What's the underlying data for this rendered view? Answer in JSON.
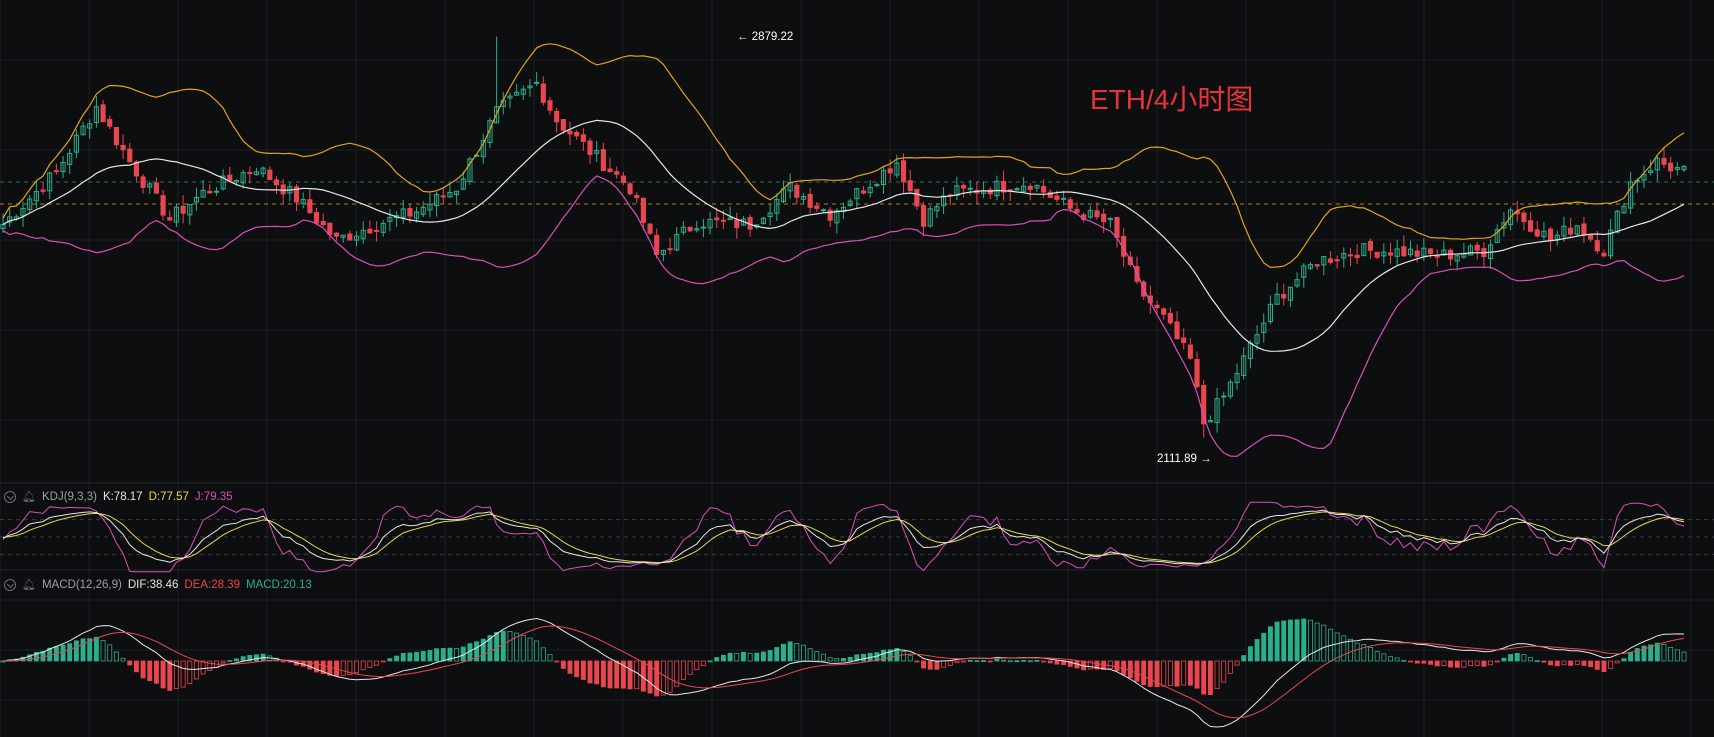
{
  "title": "ETH/4小时图",
  "colors": {
    "bg": "#0d0e10",
    "grid": "#1c1e22",
    "up": "#2bae8c",
    "down": "#e8474f",
    "boll_upper": "#e3a21a",
    "boll_mid": "#e6e6e6",
    "boll_lower": "#d94fb8",
    "k": "#e6e6e6",
    "d": "#e8d84a",
    "j": "#d94fb8",
    "dif": "#e6e6e6",
    "dea": "#e8474f",
    "ref_line": "#c9a227"
  },
  "annotations": {
    "high": {
      "text": "2879.22",
      "arrow": "←"
    },
    "low": {
      "text": "2111.89",
      "arrow": "→"
    }
  },
  "kdj": {
    "label": "KDJ(9,3,3)",
    "k": "K:78.17",
    "d": "D:77.57",
    "j": "J:79.35"
  },
  "macd": {
    "label": "MACD(12,26,9)",
    "dif": "DIF:38.46",
    "dea": "DEA:28.39",
    "macd": "MACD:20.13"
  },
  "chart_data": {
    "type": "candlestick",
    "title": "ETH/4小时图",
    "ylim": [
      2050,
      2930
    ],
    "high_marker": 2879.22,
    "low_marker": 2111.89,
    "close_path": [
      [
        0,
        2520
      ],
      [
        8,
        2620
      ],
      [
        14,
        2745
      ],
      [
        19,
        2640
      ],
      [
        25,
        2530
      ],
      [
        30,
        2580
      ],
      [
        38,
        2630
      ],
      [
        44,
        2570
      ],
      [
        50,
        2490
      ],
      [
        56,
        2520
      ],
      [
        62,
        2545
      ],
      [
        68,
        2590
      ],
      [
        74,
        2735
      ],
      [
        80,
        2790
      ],
      [
        83,
        2720
      ],
      [
        88,
        2660
      ],
      [
        94,
        2590
      ],
      [
        98,
        2460
      ],
      [
        104,
        2525
      ],
      [
        112,
        2520
      ],
      [
        118,
        2590
      ],
      [
        124,
        2540
      ],
      [
        130,
        2600
      ],
      [
        134,
        2640
      ],
      [
        138,
        2530
      ],
      [
        142,
        2580
      ],
      [
        148,
        2590
      ],
      [
        154,
        2600
      ],
      [
        160,
        2550
      ],
      [
        166,
        2520
      ],
      [
        170,
        2400
      ],
      [
        174,
        2340
      ],
      [
        178,
        2260
      ],
      [
        180,
        2140
      ],
      [
        183,
        2190
      ],
      [
        187,
        2285
      ],
      [
        191,
        2380
      ],
      [
        197,
        2450
      ],
      [
        203,
        2470
      ],
      [
        208,
        2470
      ],
      [
        215,
        2460
      ],
      [
        222,
        2470
      ],
      [
        226,
        2550
      ],
      [
        232,
        2490
      ],
      [
        236,
        2520
      ],
      [
        240,
        2470
      ],
      [
        244,
        2600
      ],
      [
        248,
        2640
      ],
      [
        252,
        2620
      ]
    ],
    "kdj_series": [
      {
        "name": "K",
        "value": 78.17
      },
      {
        "name": "D",
        "value": 77.57
      },
      {
        "name": "J",
        "value": 79.35
      }
    ],
    "macd_series": [
      {
        "name": "DIF",
        "value": 38.46
      },
      {
        "name": "DEA",
        "value": 28.39
      },
      {
        "name": "MACD",
        "value": 20.13
      }
    ]
  }
}
